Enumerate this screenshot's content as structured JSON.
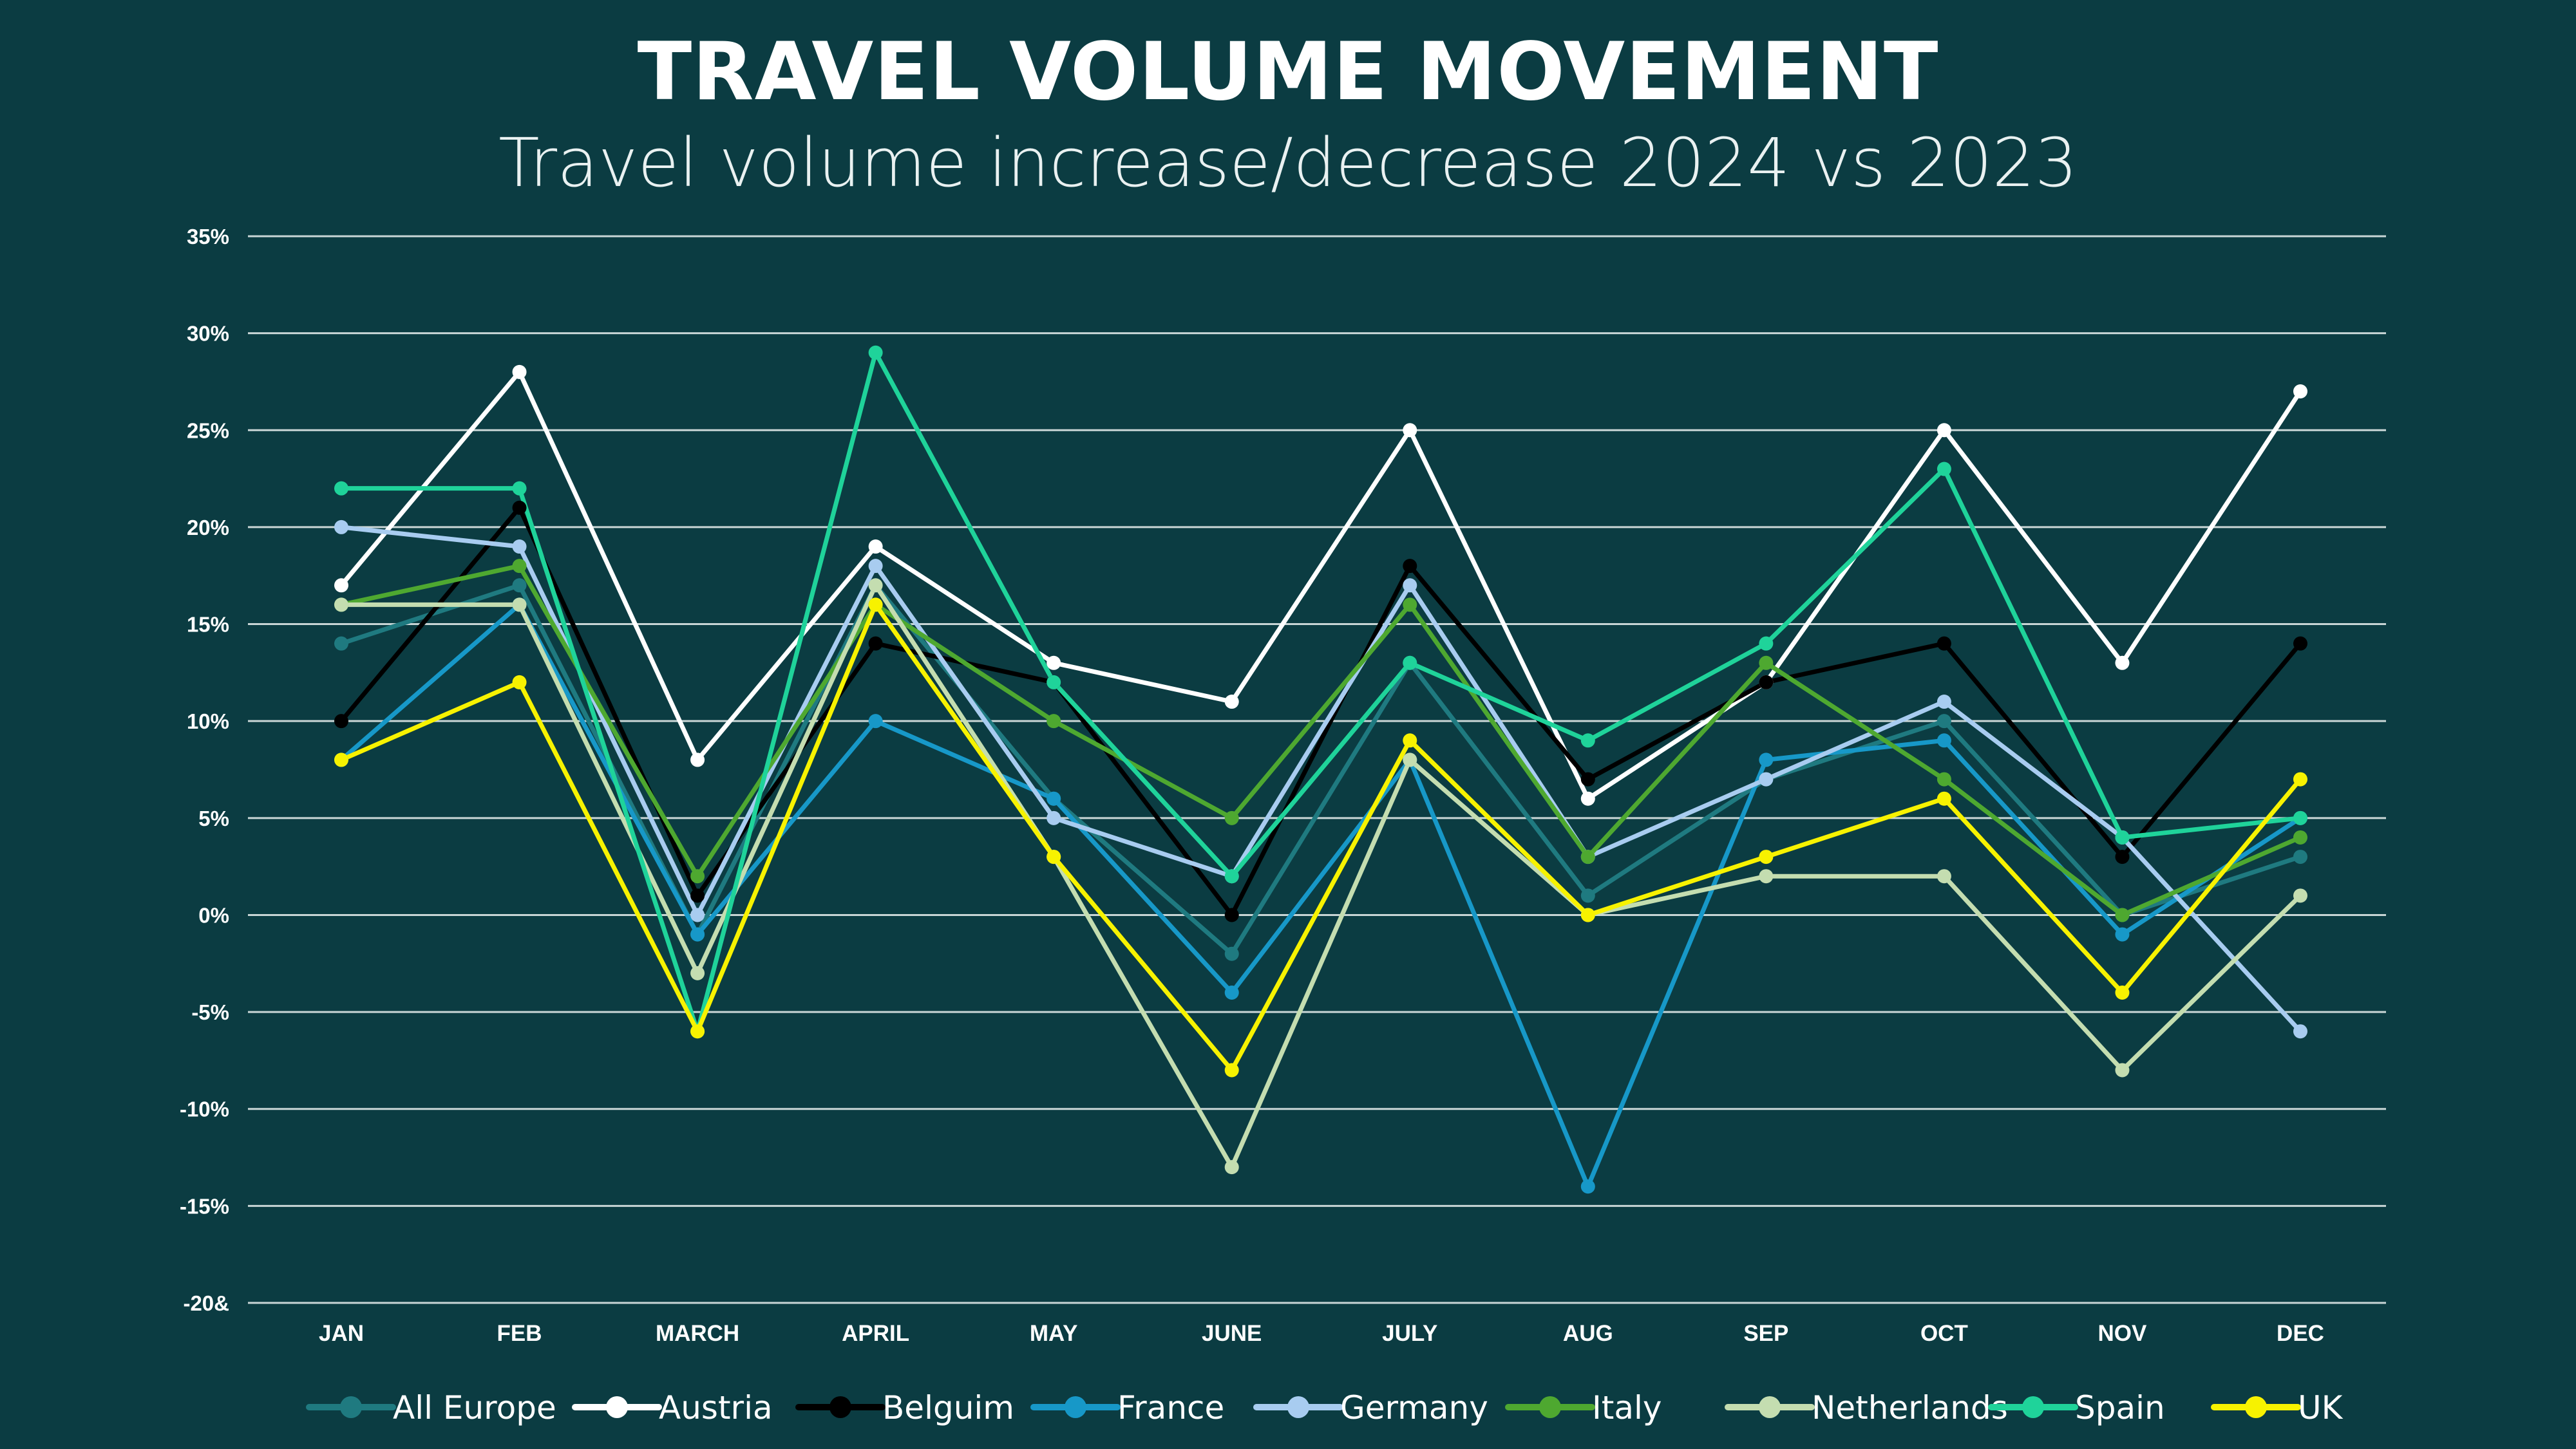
{
  "chart_data": {
    "type": "line",
    "title": "TRAVEL VOLUME MOVEMENT",
    "subtitle": "Travel volume increase/decrease 2024 vs 2023",
    "xlabel": "",
    "ylabel": "",
    "categories": [
      "JAN",
      "FEB",
      "MARCH",
      "APRIL",
      "MAY",
      "JUNE",
      "JULY",
      "AUG",
      "SEP",
      "OCT",
      "NOV",
      "DEC"
    ],
    "y_ticks": [
      35,
      30,
      25,
      20,
      15,
      10,
      5,
      0,
      -5,
      -10,
      -15,
      -20
    ],
    "y_tick_labels": [
      "35%",
      "30%",
      "25%",
      "20%",
      "15%",
      "10%",
      "5%",
      "0%",
      "-5%",
      "-10%",
      "-15%",
      "-20&"
    ],
    "ylim": [
      -20,
      35
    ],
    "grid": "horizontal",
    "legend_position": "bottom",
    "series": [
      {
        "name": "All Europe",
        "color": "#1f7a80",
        "values": [
          14,
          17,
          -1,
          17,
          6,
          -2,
          13,
          1,
          7,
          10,
          0,
          3
        ]
      },
      {
        "name": "Austria",
        "color": "#ffffff",
        "values": [
          17,
          28,
          8,
          19,
          13,
          11,
          25,
          6,
          12,
          25,
          13,
          27
        ]
      },
      {
        "name": "Belguim",
        "color": "#000000",
        "values": [
          10,
          21,
          1,
          14,
          12,
          0,
          18,
          7,
          12,
          14,
          3,
          14
        ]
      },
      {
        "name": "France",
        "color": "#1798c8",
        "values": [
          8,
          16,
          -1,
          10,
          6,
          -4,
          8,
          -14,
          8,
          9,
          -1,
          5
        ]
      },
      {
        "name": "Germany",
        "color": "#a8ccf0",
        "values": [
          20,
          19,
          0,
          18,
          5,
          2,
          17,
          3,
          7,
          11,
          4,
          -6
        ]
      },
      {
        "name": "Italy",
        "color": "#4ea830",
        "values": [
          16,
          18,
          2,
          16,
          10,
          5,
          16,
          3,
          13,
          7,
          0,
          4
        ]
      },
      {
        "name": "Netherlands",
        "color": "#c4ddb0",
        "values": [
          16,
          16,
          -3,
          17,
          3,
          -13,
          8,
          0,
          2,
          2,
          -8,
          1
        ]
      },
      {
        "name": "Spain",
        "color": "#1fd39a",
        "values": [
          22,
          22,
          -6,
          29,
          12,
          2,
          13,
          9,
          14,
          23,
          4,
          5
        ]
      },
      {
        "name": "UK",
        "color": "#f7f200",
        "values": [
          8,
          12,
          -6,
          16,
          3,
          -8,
          9,
          0,
          3,
          6,
          -4,
          7
        ]
      }
    ]
  }
}
